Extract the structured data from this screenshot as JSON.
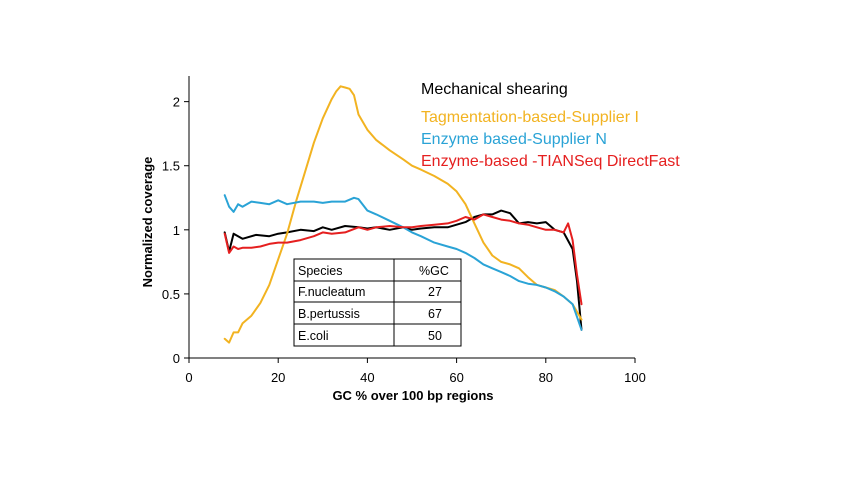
{
  "chart_data": {
    "type": "line",
    "title": "",
    "xlabel": "GC % over 100 bp regions",
    "ylabel": "Normalized coverage",
    "xlim": [
      0,
      100
    ],
    "ylim": [
      0,
      2.2
    ],
    "x_ticks": [
      0,
      20,
      40,
      60,
      80,
      100
    ],
    "y_ticks": [
      0,
      0.5,
      1,
      1.5,
      2
    ],
    "y_tick_labels": [
      "0",
      "0.5",
      "1",
      "1.5",
      "2"
    ],
    "grid": false,
    "legend_position": "top-right",
    "series": [
      {
        "name": "Mechanical shearing",
        "color": "#000000",
        "x": [
          8,
          9,
          10,
          12,
          15,
          18,
          20,
          22,
          25,
          28,
          30,
          32,
          35,
          38,
          40,
          42,
          45,
          48,
          50,
          52,
          55,
          58,
          60,
          62,
          64,
          66,
          68,
          70,
          72,
          74,
          76,
          78,
          80,
          82,
          84,
          86,
          87,
          88
        ],
        "y": [
          0.98,
          0.83,
          0.97,
          0.93,
          0.96,
          0.95,
          0.97,
          0.98,
          1.0,
          0.99,
          1.02,
          1.0,
          1.03,
          1.02,
          1.01,
          1.02,
          1.0,
          1.02,
          1.0,
          1.01,
          1.02,
          1.02,
          1.04,
          1.06,
          1.1,
          1.12,
          1.12,
          1.15,
          1.13,
          1.05,
          1.06,
          1.05,
          1.06,
          1.0,
          0.98,
          0.85,
          0.6,
          0.22
        ]
      },
      {
        "name": "Tagmentation-based-Supplier I",
        "color": "#f2b321",
        "x": [
          8,
          9,
          10,
          11,
          12,
          14,
          16,
          18,
          20,
          22,
          24,
          26,
          28,
          30,
          32,
          33,
          34,
          35,
          36,
          37,
          38,
          40,
          42,
          45,
          48,
          50,
          52,
          55,
          58,
          60,
          62,
          64,
          66,
          68,
          70,
          72,
          74,
          76,
          78,
          80,
          82,
          84,
          86,
          88
        ],
        "y": [
          0.15,
          0.12,
          0.2,
          0.2,
          0.27,
          0.33,
          0.43,
          0.57,
          0.77,
          0.97,
          1.22,
          1.45,
          1.68,
          1.87,
          2.02,
          2.08,
          2.12,
          2.11,
          2.1,
          2.05,
          1.9,
          1.78,
          1.7,
          1.62,
          1.55,
          1.5,
          1.47,
          1.42,
          1.36,
          1.3,
          1.2,
          1.05,
          0.9,
          0.8,
          0.75,
          0.73,
          0.7,
          0.63,
          0.57,
          0.55,
          0.53,
          0.48,
          0.42,
          0.3
        ]
      },
      {
        "name": "Enzyme based-Supplier N",
        "color": "#2aa3d6",
        "x": [
          8,
          9,
          10,
          11,
          12,
          14,
          16,
          18,
          20,
          22,
          25,
          28,
          30,
          32,
          35,
          37,
          38,
          40,
          42,
          45,
          48,
          50,
          52,
          55,
          58,
          60,
          62,
          64,
          66,
          68,
          70,
          72,
          74,
          76,
          78,
          80,
          82,
          84,
          86,
          88
        ],
        "y": [
          1.27,
          1.18,
          1.14,
          1.2,
          1.18,
          1.22,
          1.21,
          1.2,
          1.23,
          1.2,
          1.22,
          1.22,
          1.21,
          1.22,
          1.22,
          1.25,
          1.24,
          1.15,
          1.12,
          1.07,
          1.02,
          0.98,
          0.95,
          0.9,
          0.87,
          0.85,
          0.82,
          0.78,
          0.73,
          0.7,
          0.67,
          0.64,
          0.6,
          0.58,
          0.57,
          0.55,
          0.52,
          0.48,
          0.42,
          0.22
        ]
      },
      {
        "name": "Enzyme-based -TIANSeq DirectFast",
        "color": "#e51f1f",
        "x": [
          8,
          9,
          10,
          11,
          12,
          14,
          16,
          18,
          20,
          22,
          25,
          28,
          30,
          32,
          35,
          38,
          40,
          42,
          45,
          48,
          50,
          52,
          55,
          58,
          60,
          62,
          64,
          66,
          68,
          70,
          72,
          74,
          76,
          78,
          80,
          82,
          84,
          85,
          86,
          87,
          88
        ],
        "y": [
          0.97,
          0.82,
          0.87,
          0.85,
          0.86,
          0.86,
          0.87,
          0.89,
          0.9,
          0.9,
          0.92,
          0.95,
          0.98,
          0.97,
          0.98,
          1.02,
          1.0,
          1.02,
          1.03,
          1.02,
          1.02,
          1.03,
          1.04,
          1.05,
          1.07,
          1.1,
          1.08,
          1.12,
          1.1,
          1.08,
          1.07,
          1.05,
          1.04,
          1.02,
          1.0,
          1.0,
          0.98,
          1.05,
          0.92,
          0.65,
          0.42
        ]
      }
    ],
    "inset_table": {
      "headers": [
        "Species",
        "%GC"
      ],
      "rows": [
        [
          "F.nucleatum",
          "27"
        ],
        [
          "B.pertussis",
          "67"
        ],
        [
          "E.coli",
          "50"
        ]
      ]
    }
  }
}
